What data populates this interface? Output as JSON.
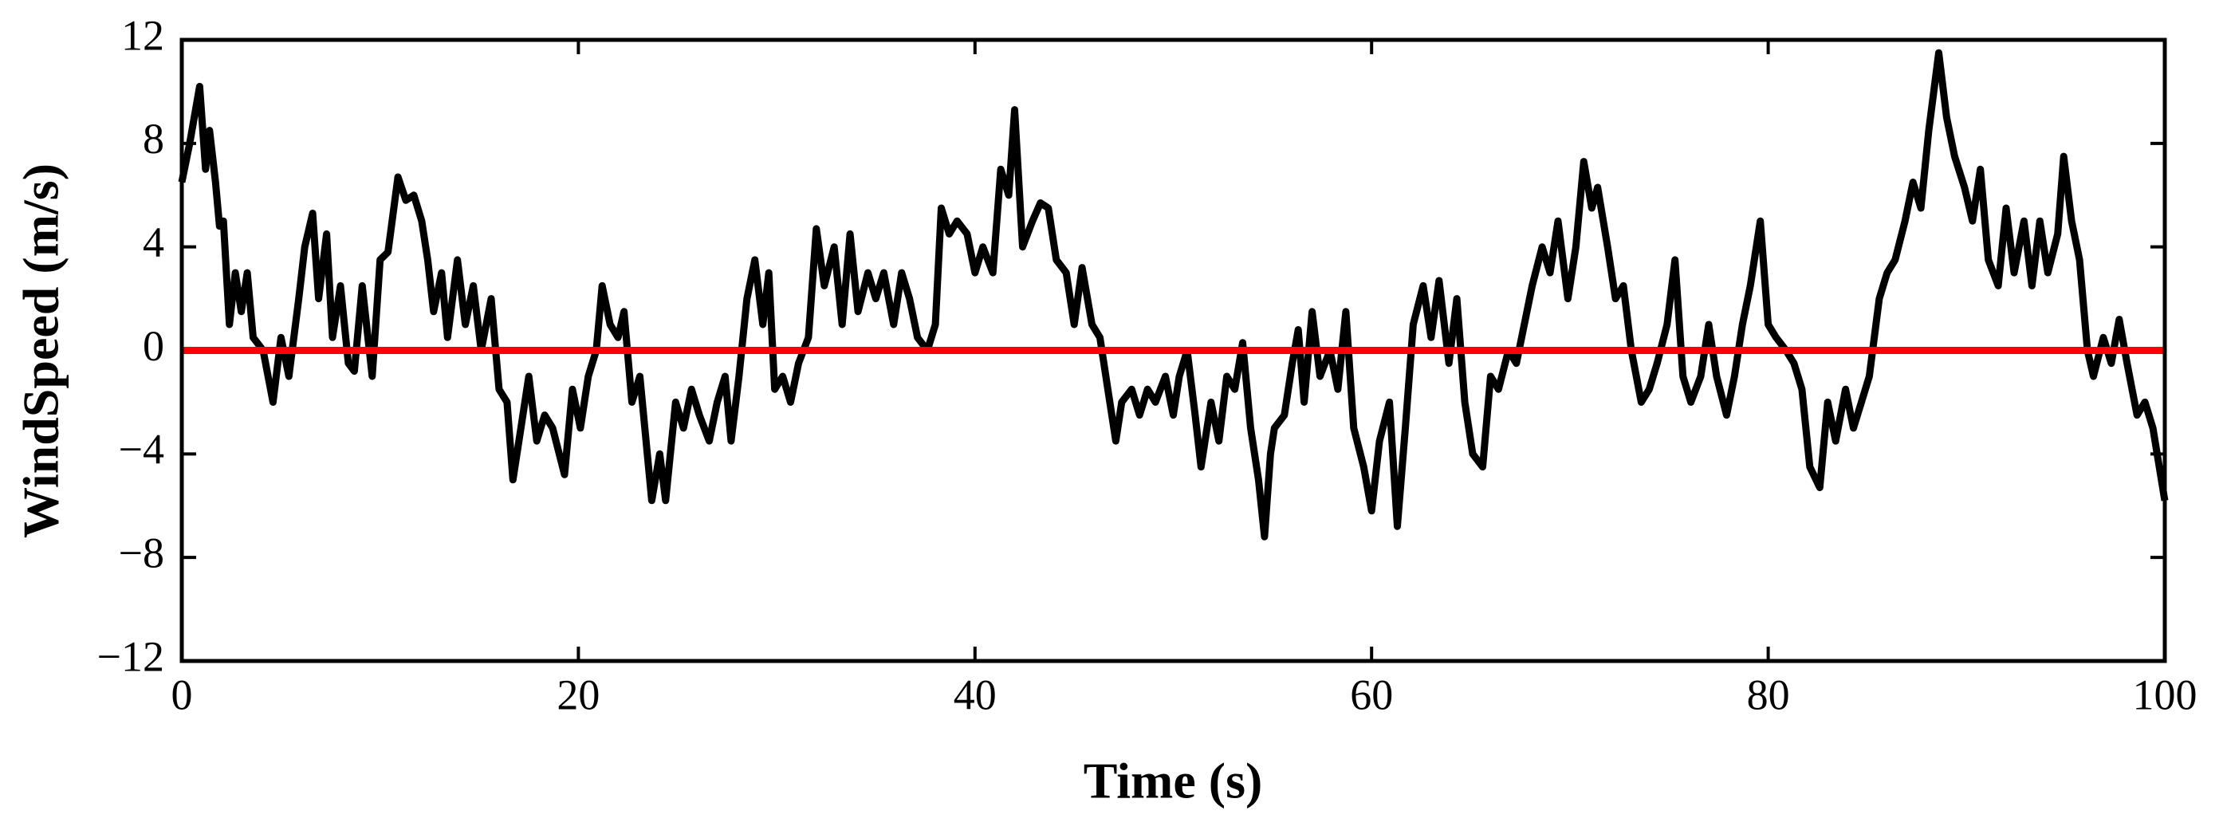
{
  "chart_data": {
    "type": "line",
    "xlabel": "Time (s)",
    "ylabel": "WindSpeed (m/s)",
    "x": [
      0,
      0.4,
      0.9,
      1.2,
      1.4,
      1.7,
      1.9,
      2.1,
      2.4,
      2.7,
      3.0,
      3.3,
      3.6,
      4.1,
      4.6,
      5.0,
      5.4,
      5.9,
      6.2,
      6.6,
      6.9,
      7.3,
      7.6,
      8.0,
      8.4,
      8.7,
      9.1,
      9.6,
      10.0,
      10.4,
      10.9,
      11.3,
      11.7,
      12.1,
      12.4,
      12.7,
      13.1,
      13.4,
      13.9,
      14.3,
      14.7,
      15.1,
      15.6,
      16.0,
      16.4,
      16.7,
      17.1,
      17.5,
      17.9,
      18.3,
      18.7,
      19.3,
      19.7,
      20.1,
      20.5,
      20.9,
      21.2,
      21.6,
      22.0,
      22.3,
      22.7,
      23.1,
      23.7,
      24.1,
      24.4,
      24.9,
      25.3,
      25.7,
      26.1,
      26.6,
      27.0,
      27.4,
      27.7,
      28.1,
      28.5,
      28.9,
      29.3,
      29.6,
      29.9,
      30.3,
      30.7,
      31.1,
      31.6,
      32.0,
      32.4,
      32.9,
      33.3,
      33.7,
      34.1,
      34.6,
      35.0,
      35.4,
      35.9,
      36.3,
      36.7,
      37.1,
      37.6,
      38.0,
      38.3,
      38.7,
      39.1,
      39.6,
      40.0,
      40.4,
      40.9,
      41.3,
      41.7,
      42.0,
      42.4,
      42.9,
      43.3,
      43.7,
      44.1,
      44.6,
      45.0,
      45.4,
      45.9,
      46.3,
      46.7,
      47.1,
      47.4,
      47.9,
      48.3,
      48.7,
      49.1,
      49.6,
      50.0,
      50.3,
      50.7,
      51.1,
      51.4,
      51.9,
      52.3,
      52.7,
      53.1,
      53.5,
      53.9,
      54.3,
      54.6,
      54.9,
      55.1,
      55.6,
      56.0,
      56.3,
      56.6,
      57.0,
      57.4,
      57.9,
      58.3,
      58.7,
      59.1,
      59.6,
      60.0,
      60.4,
      60.9,
      61.3,
      61.7,
      62.1,
      62.6,
      63.0,
      63.4,
      63.9,
      64.3,
      64.7,
      65.1,
      65.6,
      66.0,
      66.4,
      66.9,
      67.3,
      67.7,
      68.1,
      68.6,
      69.0,
      69.4,
      69.9,
      70.3,
      70.7,
      71.1,
      71.4,
      71.9,
      72.3,
      72.7,
      73.1,
      73.6,
      74.0,
      74.4,
      74.9,
      75.3,
      75.7,
      76.1,
      76.6,
      77.0,
      77.4,
      77.9,
      78.3,
      78.7,
      79.1,
      79.6,
      80.0,
      80.4,
      80.9,
      81.3,
      81.7,
      82.1,
      82.6,
      83.0,
      83.4,
      83.9,
      84.3,
      84.7,
      85.1,
      85.6,
      86.0,
      86.4,
      86.9,
      87.3,
      87.7,
      88.1,
      88.6,
      89.0,
      89.4,
      89.9,
      90.3,
      90.7,
      91.1,
      91.6,
      92.0,
      92.4,
      92.9,
      93.3,
      93.7,
      94.1,
      94.6,
      94.9,
      95.3,
      95.7,
      96.1,
      96.4,
      96.9,
      97.3,
      97.7,
      98.1,
      98.6,
      99.0,
      99.4,
      100.0
    ],
    "series": [
      {
        "color": "#000000",
        "values": [
          6.5,
          8,
          10.2,
          7,
          8.5,
          6.5,
          4.8,
          5,
          1,
          3,
          1.5,
          3,
          0.5,
          0,
          -2,
          0.5,
          -1,
          2,
          4,
          5.3,
          2,
          4.5,
          0.5,
          2.5,
          -0.5,
          -0.8,
          2.5,
          -1,
          3.5,
          3.8,
          6.7,
          5.8,
          6,
          5,
          3.5,
          1.5,
          3,
          0.5,
          3.5,
          1,
          2.5,
          0,
          2,
          -1.5,
          -2,
          -5,
          -3,
          -1,
          -3.5,
          -2.5,
          -3,
          -4.8,
          -1.5,
          -3,
          -1,
          0,
          2.5,
          1,
          0.5,
          1.5,
          -2,
          -1,
          -5.8,
          -4,
          -5.8,
          -2,
          -3,
          -1.5,
          -2.5,
          -3.5,
          -2,
          -1,
          -3.5,
          -1,
          2,
          3.5,
          1,
          3,
          -1.5,
          -1,
          -2,
          -0.5,
          0.5,
          4.7,
          2.5,
          4,
          1,
          4.5,
          1.5,
          3,
          2,
          3,
          1,
          3,
          2,
          0.5,
          0,
          1,
          5.5,
          4.5,
          5,
          4.5,
          3,
          4,
          3,
          7,
          6,
          9.3,
          4,
          5,
          5.7,
          5.5,
          3.5,
          3,
          1,
          3.2,
          1,
          0.5,
          -1.5,
          -3.5,
          -2,
          -1.5,
          -2.5,
          -1.5,
          -2,
          -1,
          -2.5,
          -1,
          0,
          -2.5,
          -4.5,
          -2,
          -3.5,
          -1,
          -1.5,
          0.3,
          -3,
          -5,
          -7.2,
          -4,
          -3,
          -2.5,
          -0.5,
          0.8,
          -2,
          1.5,
          -1,
          0,
          -1.5,
          1.5,
          -3,
          -4.5,
          -6.2,
          -3.5,
          -2,
          -6.8,
          -3,
          1,
          2.5,
          0.5,
          2.7,
          -0.5,
          2,
          -2,
          -4,
          -4.5,
          -1,
          -1.5,
          0,
          -0.5,
          1,
          2.5,
          4,
          3,
          5,
          2,
          4,
          7.3,
          5.5,
          6.3,
          4,
          2,
          2.5,
          0,
          -2,
          -1.5,
          -0.5,
          1,
          3.5,
          -1,
          -2,
          -1,
          1,
          -1,
          -2.5,
          -1,
          1,
          2.5,
          5,
          1,
          0.5,
          0,
          -0.5,
          -1.5,
          -4.5,
          -5.3,
          -2,
          -3.5,
          -1.5,
          -3,
          -2,
          -1,
          2,
          3,
          3.5,
          5,
          6.5,
          5.5,
          8.5,
          11.5,
          9,
          7.5,
          6.3,
          5,
          7,
          3.5,
          2.5,
          5.5,
          3,
          5,
          2.5,
          5,
          3,
          4.5,
          7.5,
          5,
          3.5,
          0,
          -1,
          0.5,
          -0.5,
          1.2,
          -0.5,
          -2.5,
          -2,
          -3,
          -5.8
        ]
      }
    ],
    "reference_line": {
      "y": 0,
      "color": "#ff0000"
    },
    "xlim": [
      0,
      100
    ],
    "xticks": [
      0,
      20,
      40,
      60,
      80,
      100
    ],
    "ylim": [
      -12,
      12
    ],
    "yticks": [
      {
        "value": -12,
        "label": "−12"
      },
      {
        "value": -8,
        "label": "−8"
      },
      {
        "value": -4,
        "label": "−4"
      },
      0,
      4,
      8,
      12
    ]
  }
}
